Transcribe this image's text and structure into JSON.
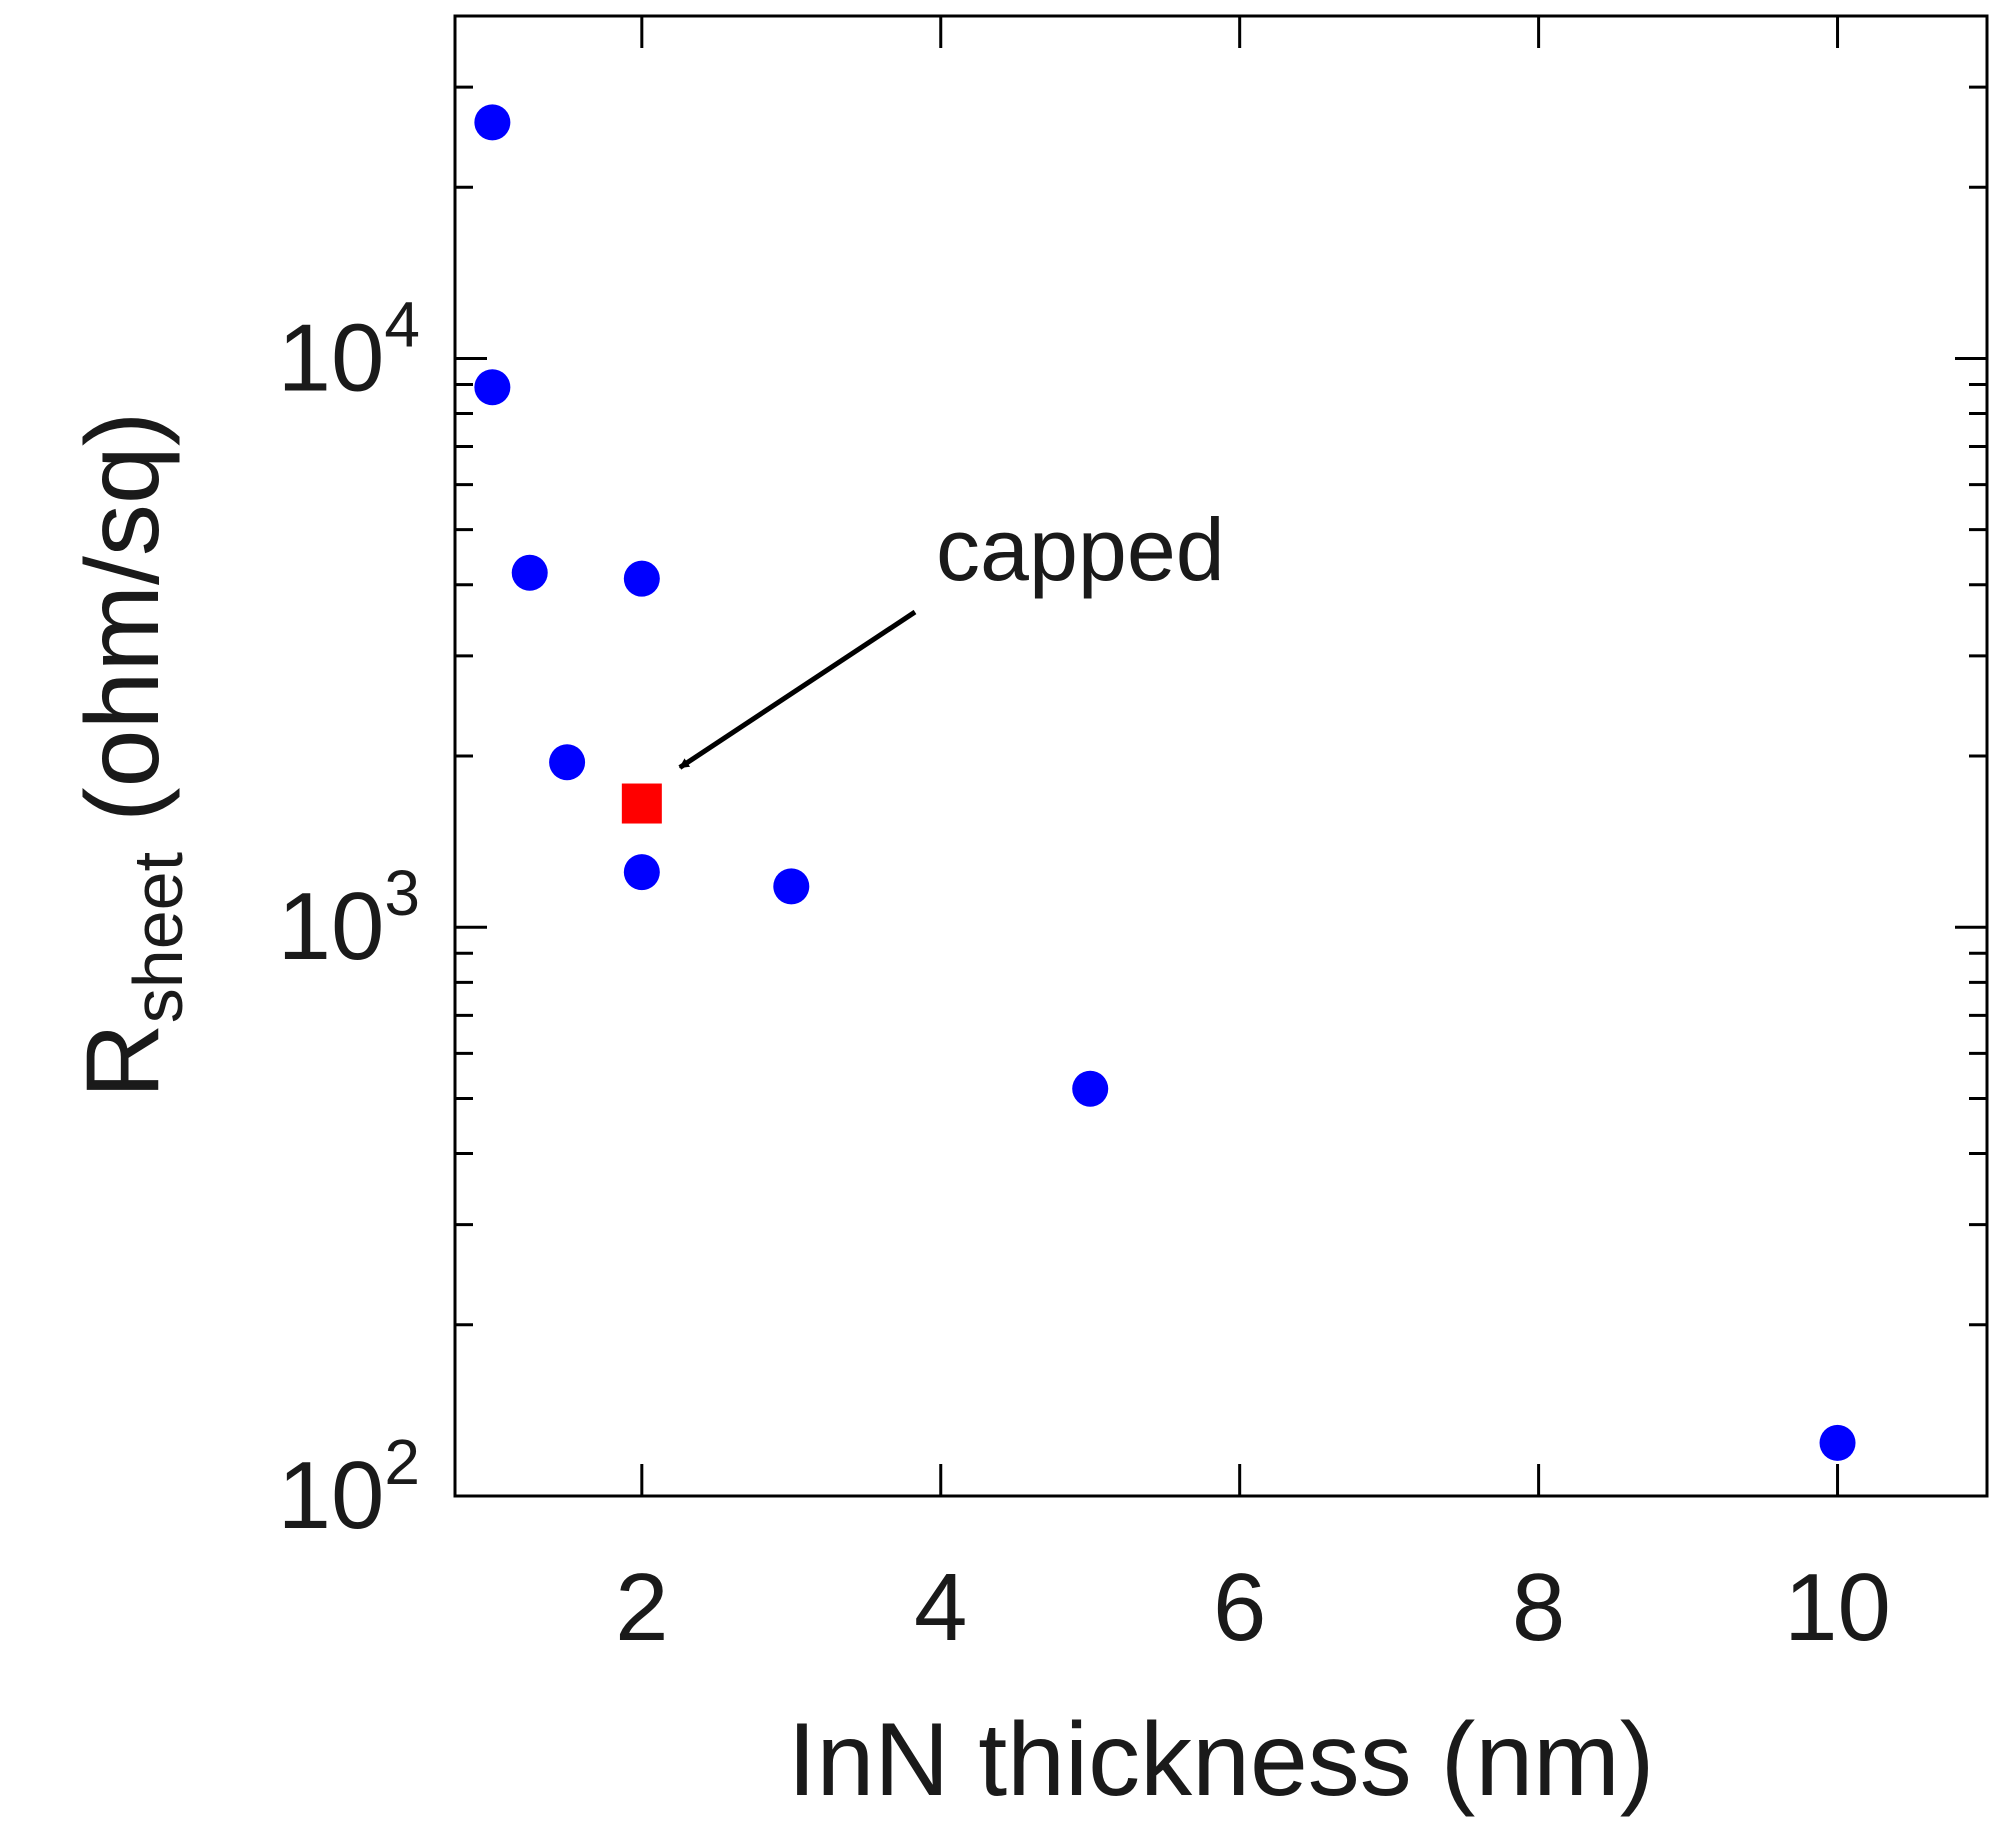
{
  "chart_data": {
    "type": "scatter",
    "title": "",
    "xlabel": "InN thickness (nm)",
    "ylabel": {
      "main": "R",
      "subscript": "sheet",
      "unit": "(ohm/sq)"
    },
    "xscale": "linear",
    "yscale": "log",
    "xlim": [
      0.75,
      11.0
    ],
    "ylim": [
      100,
      40000
    ],
    "xticks": [
      2,
      4,
      6,
      8,
      10
    ],
    "xtick_labels": [
      "2",
      "4",
      "6",
      "8",
      "10"
    ],
    "yticks_major": [
      {
        "value": 100,
        "base": "10",
        "exp": "2"
      },
      {
        "value": 1000,
        "base": "10",
        "exp": "3"
      },
      {
        "value": 10000,
        "base": "10",
        "exp": "4"
      }
    ],
    "yticks_minor": [
      200,
      300,
      400,
      500,
      600,
      700,
      800,
      900,
      2000,
      3000,
      4000,
      5000,
      6000,
      7000,
      8000,
      9000,
      20000,
      30000
    ],
    "grid": false,
    "series": [
      {
        "marker": "circle",
        "color": "#0000ff",
        "points": [
          {
            "x": 1.0,
            "y": 26000
          },
          {
            "x": 1.0,
            "y": 8900
          },
          {
            "x": 1.25,
            "y": 4200
          },
          {
            "x": 2.0,
            "y": 4100
          },
          {
            "x": 1.5,
            "y": 1950
          },
          {
            "x": 2.0,
            "y": 1250
          },
          {
            "x": 3.0,
            "y": 1180
          },
          {
            "x": 5.0,
            "y": 520
          },
          {
            "x": 10.0,
            "y": 124
          }
        ]
      },
      {
        "marker": "square",
        "color": "#ff0000",
        "points": [
          {
            "x": 2.0,
            "y": 1650
          }
        ]
      }
    ],
    "annotations": [
      {
        "text": "capped",
        "target": {
          "x": 2.0,
          "y": 1650
        }
      }
    ]
  }
}
